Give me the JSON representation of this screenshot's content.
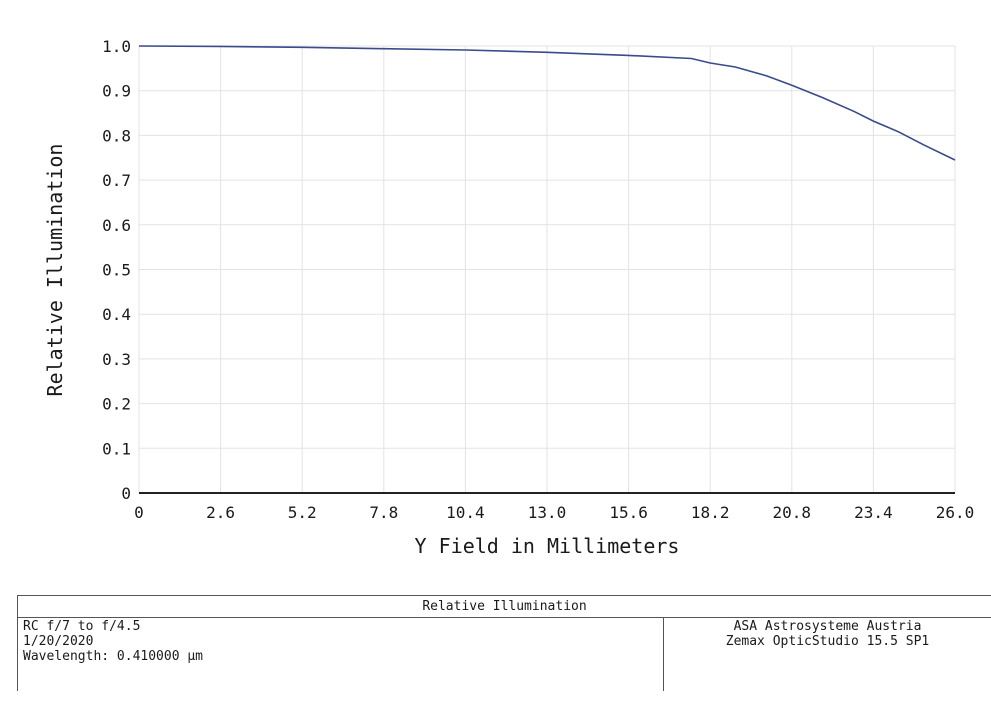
{
  "chart_data": {
    "type": "line",
    "xlabel": "Y Field in Millimeters",
    "ylabel": "Relative Illumination",
    "xlim": [
      0,
      26.0
    ],
    "ylim": [
      0,
      1.0
    ],
    "x_ticks": [
      "0",
      "2.6",
      "5.2",
      "7.8",
      "10.4",
      "13.0",
      "15.6",
      "18.2",
      "20.8",
      "23.4",
      "26.0"
    ],
    "y_ticks": [
      "0",
      "0.1",
      "0.2",
      "0.3",
      "0.4",
      "0.5",
      "0.6",
      "0.7",
      "0.8",
      "0.9",
      "1.0"
    ],
    "grid": true,
    "series": [
      {
        "color": "#3a4a8c",
        "x": [
          0,
          2.6,
          5.2,
          7.8,
          10.4,
          13.0,
          15.6,
          17.6,
          18.2,
          19.0,
          20.0,
          20.8,
          21.8,
          22.8,
          23.4,
          24.2,
          25.0,
          26.0
        ],
        "y": [
          1.0,
          0.999,
          0.997,
          0.994,
          0.991,
          0.986,
          0.979,
          0.972,
          0.962,
          0.953,
          0.933,
          0.912,
          0.884,
          0.853,
          0.832,
          0.808,
          0.779,
          0.745
        ]
      }
    ]
  },
  "infobox": {
    "title": "Relative Illumination",
    "lines_left": [
      "RC f/7 to f/4.5",
      "1/20/2020",
      "Wavelength: 0.410000 µm"
    ],
    "lines_right": [
      "ASA Astrosysteme Austria",
      "Zemax OpticStudio 15.5 SP1"
    ]
  }
}
